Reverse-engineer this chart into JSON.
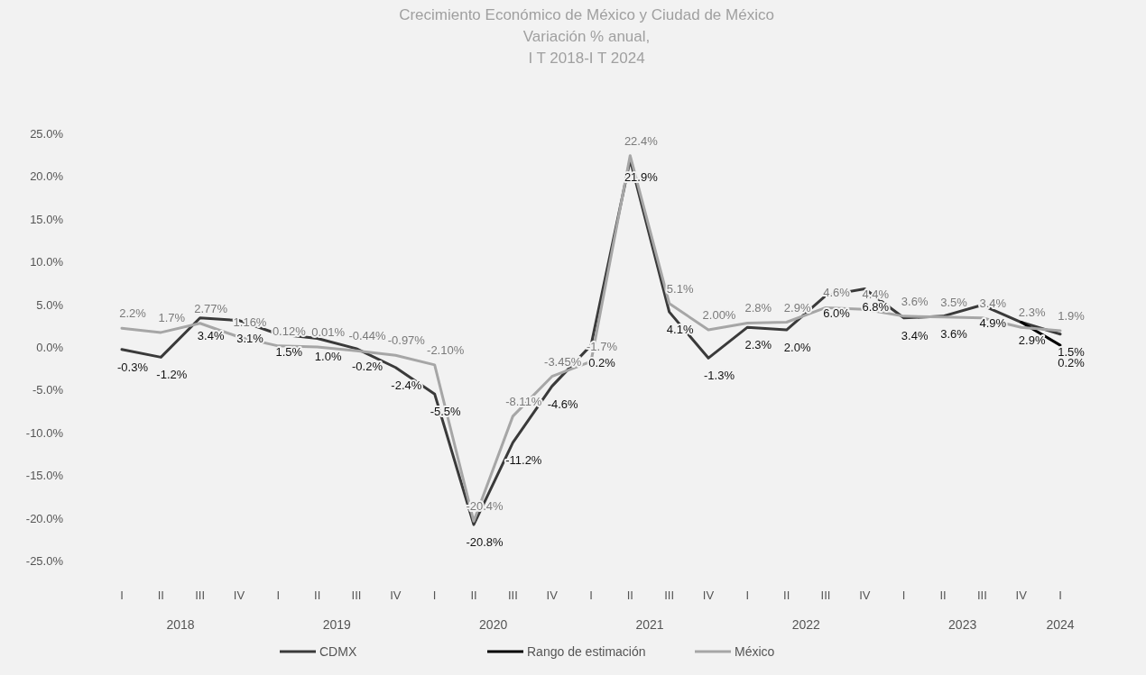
{
  "chart_data": {
    "type": "line",
    "title": "Crecimiento Económico de México y Ciudad de México",
    "subtitle": "Variación % anual,\nI T 2018-I T 2024",
    "categories": [
      "I",
      "II",
      "III",
      "IV",
      "I",
      "II",
      "III",
      "IV",
      "I",
      "II",
      "III",
      "IV",
      "I",
      "II",
      "III",
      "IV",
      "I",
      "II",
      "III",
      "IV",
      "I",
      "II",
      "III",
      "IV",
      "I"
    ],
    "annotations": [
      "2018",
      "2019",
      "2020",
      "2021",
      "2022",
      "2023",
      "2024"
    ],
    "ylim": [
      -25,
      25
    ],
    "yticks": [
      {
        "value": -25,
        "label": "-25.0%"
      },
      {
        "value": -20,
        "label": "-20.0%"
      },
      {
        "value": -15,
        "label": "-15.0%"
      },
      {
        "value": -10,
        "label": "-10.0%"
      },
      {
        "value": -5,
        "label": "-5.0%"
      },
      {
        "value": 0,
        "label": "0.0%"
      },
      {
        "value": 5,
        "label": "5.0%"
      },
      {
        "value": 10,
        "label": "10.0%"
      },
      {
        "value": 15,
        "label": "15.0%"
      },
      {
        "value": 20,
        "label": "20.0%"
      },
      {
        "value": 25,
        "label": "25.0%"
      }
    ],
    "series": [
      {
        "name": "CDMX",
        "color": "#3a3a3a",
        "values": [
          -0.3,
          -1.2,
          3.4,
          3.1,
          1.5,
          1.0,
          -0.2,
          -2.4,
          -5.5,
          -20.8,
          -11.2,
          -4.6,
          0.2,
          21.9,
          4.1,
          -1.3,
          2.3,
          2.0,
          6.0,
          6.8,
          3.4,
          3.6,
          4.9,
          2.9,
          1.5
        ],
        "value_labels": [
          "-0.3%",
          "-1.2%",
          "3.4%",
          "3.1%",
          "1.5%",
          "1.0%",
          "-0.2%",
          "-2.4%",
          "-5.5%",
          "-20.8%",
          "-11.2%",
          "-4.6%",
          "0.2%",
          "21.9%",
          "4.1%",
          "-1.3%",
          "2.3%",
          "2.0%",
          "6.0%",
          "6.8%",
          "3.4%",
          "3.6%",
          "4.9%",
          "2.9%",
          "1.5%"
        ]
      },
      {
        "name": "Rango de estimación",
        "color": "#000000",
        "values": [
          null,
          null,
          null,
          null,
          null,
          null,
          null,
          null,
          null,
          null,
          null,
          null,
          null,
          null,
          null,
          null,
          null,
          null,
          null,
          null,
          null,
          null,
          null,
          2.9,
          0.2
        ],
        "value_labels": [
          null,
          null,
          null,
          null,
          null,
          null,
          null,
          null,
          null,
          null,
          null,
          null,
          null,
          null,
          null,
          null,
          null,
          null,
          null,
          null,
          null,
          null,
          null,
          null,
          "0.2%"
        ]
      },
      {
        "name": "México",
        "color": "#a6a6a6",
        "values": [
          2.2,
          1.7,
          2.77,
          1.16,
          0.12,
          0.01,
          -0.44,
          -0.97,
          -2.1,
          -20.4,
          -8.11,
          -3.45,
          -1.7,
          22.4,
          5.1,
          2.0,
          2.8,
          2.9,
          4.6,
          4.4,
          3.6,
          3.5,
          3.4,
          2.3,
          1.9
        ],
        "value_labels": [
          "2.2%",
          "1.7%",
          "2.77%",
          "1.16%",
          "0.12%",
          "0.01%",
          "-0.44%",
          "-0.97%",
          "-2.10%",
          "-20.4%",
          "-8.11%",
          "-3.45%",
          "-1.7%",
          "22.4%",
          "5.1%",
          "2.00%",
          "2.8%",
          "2.9%",
          "4.6%",
          "4.4%",
          "3.6%",
          "3.5%",
          "3.4%",
          "2.3%",
          "1.9%"
        ]
      }
    ],
    "legend": "bottom",
    "grid": false,
    "marker": "none",
    "line_style": "solid"
  }
}
